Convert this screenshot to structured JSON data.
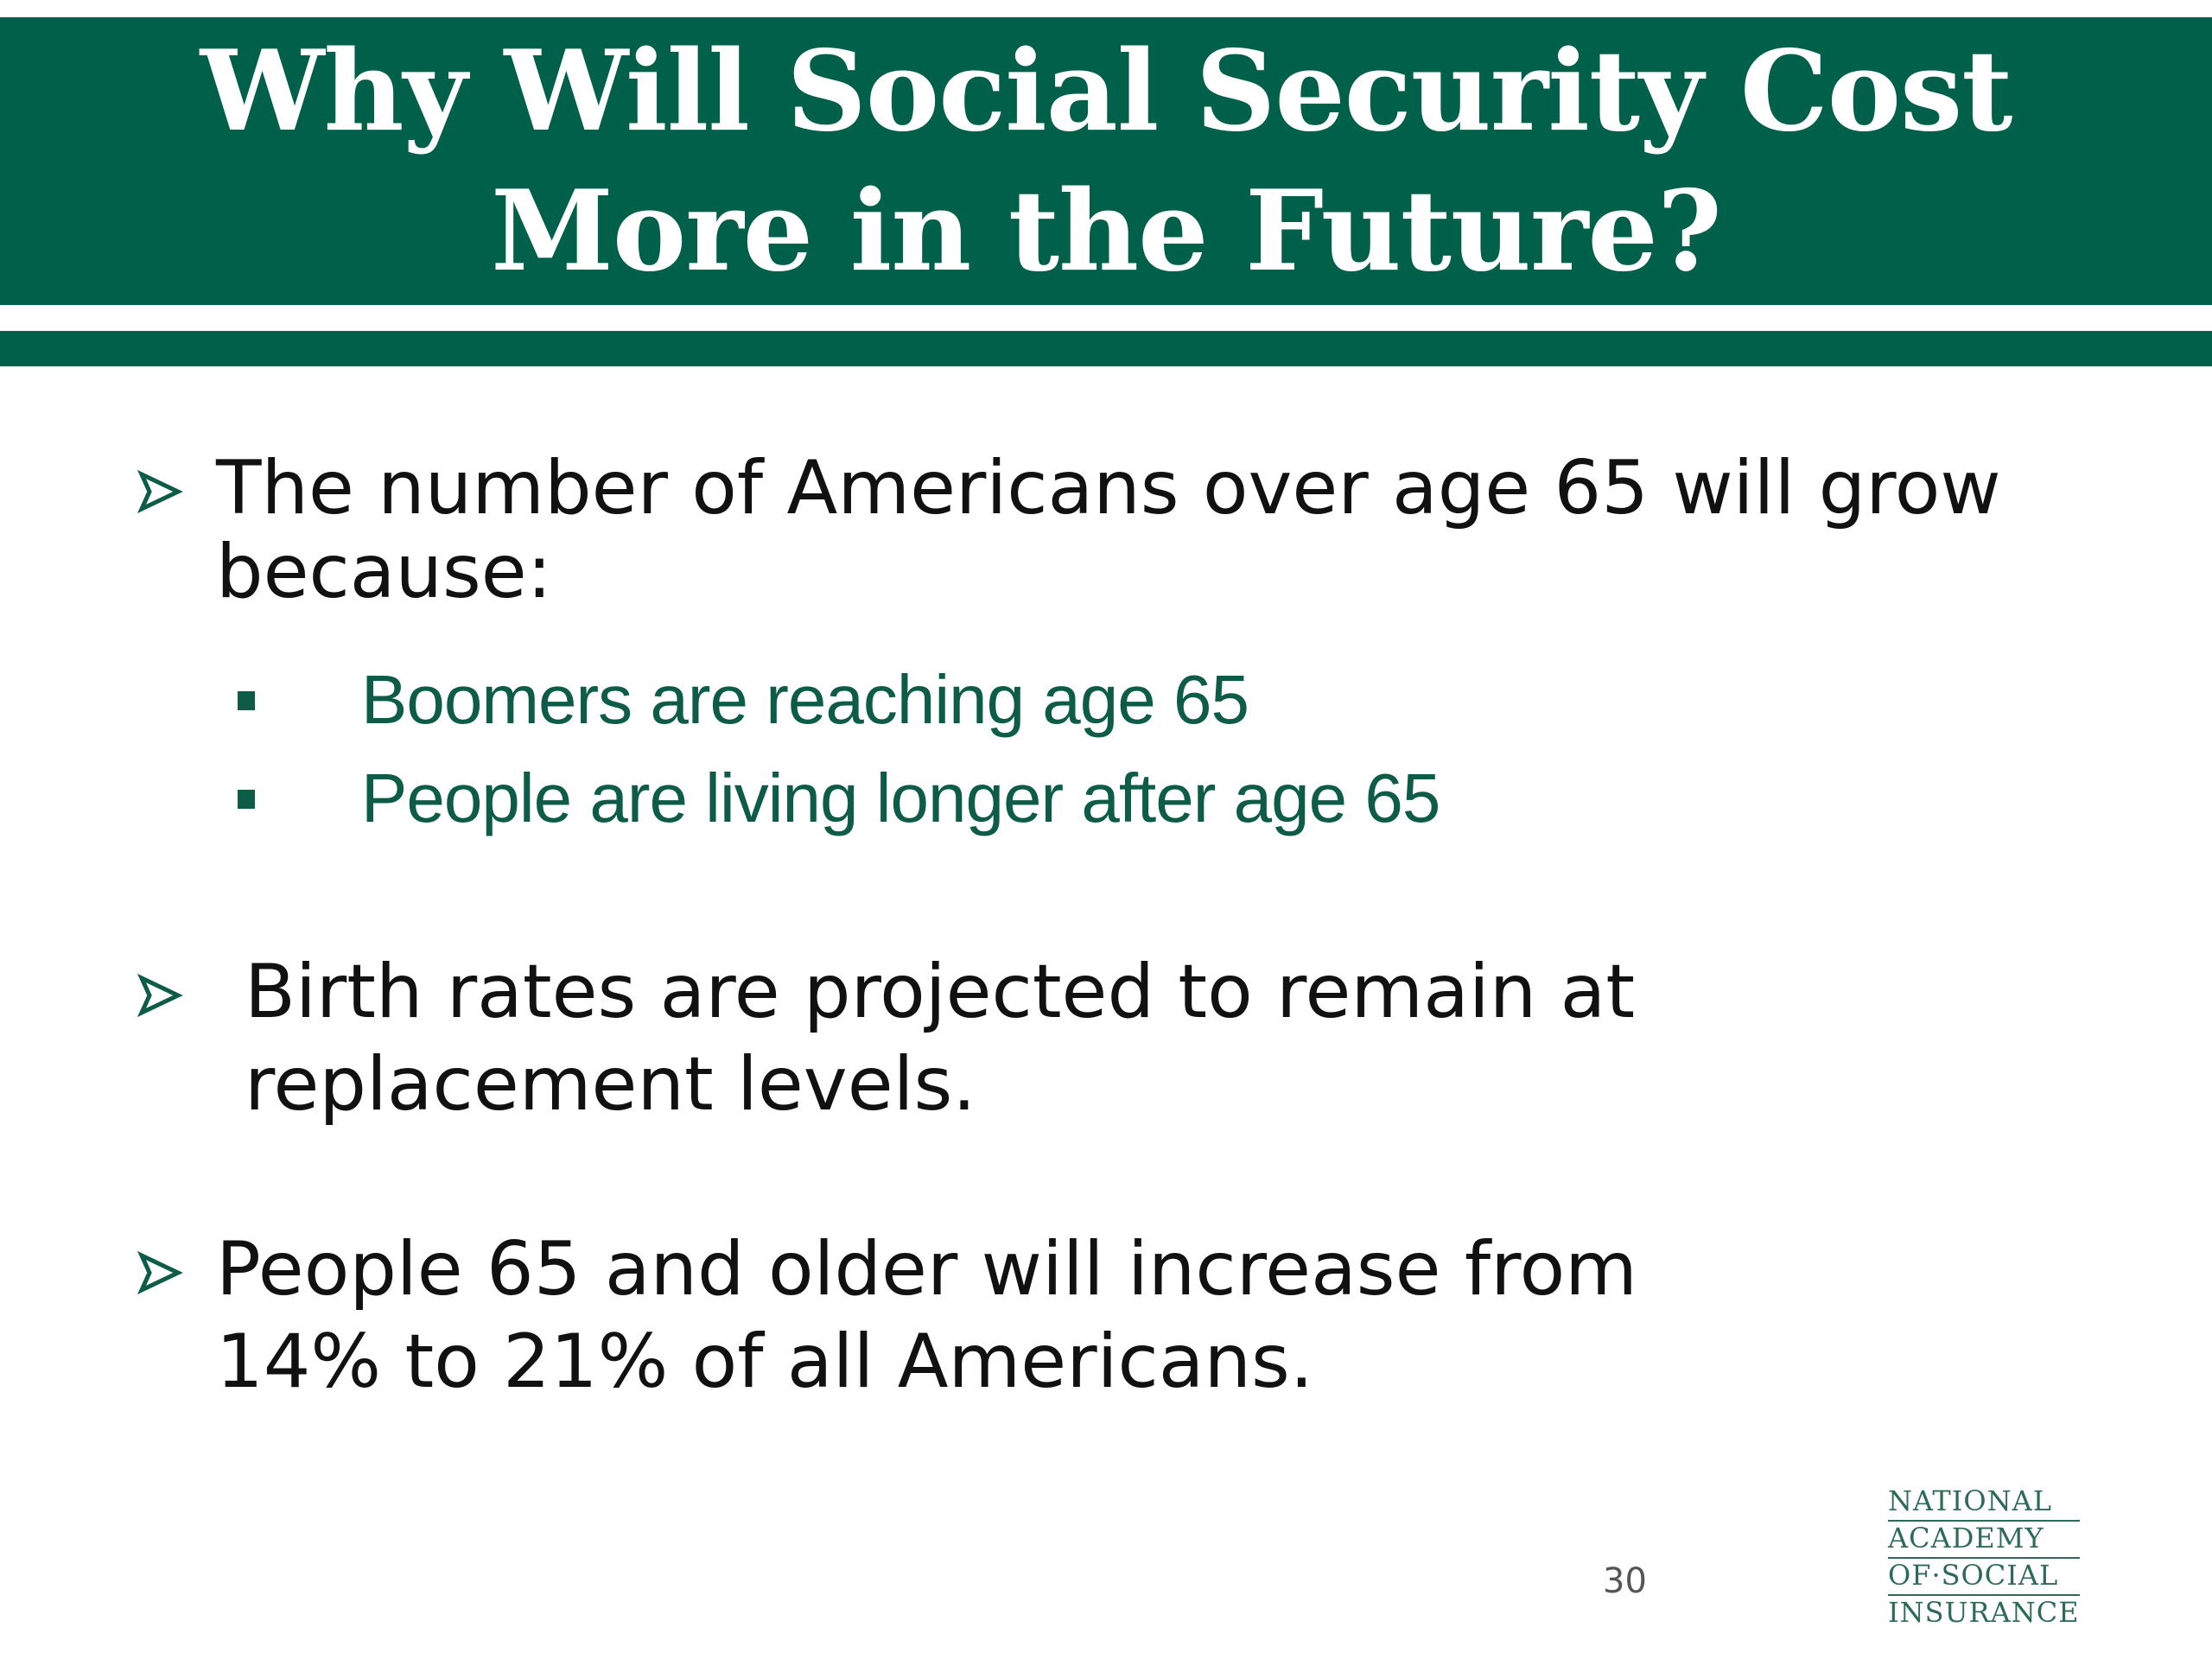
{
  "colors": {
    "brand": "#00604a",
    "sub": "#0d5c48"
  },
  "slide": {
    "title_line1": "Why Will Social Security Cost",
    "title_line2": "More in the Future?",
    "bullets": [
      {
        "icon": "arrowhead-bullet-icon",
        "lines": [
          "The number of Americans over age 65 will grow",
          "because:"
        ],
        "subitems": [
          {
            "icon": "square-bullet-icon",
            "text": "Boomers are reaching age 65"
          },
          {
            "icon": "square-bullet-icon",
            "text": "People are living longer after age 65"
          }
        ]
      },
      {
        "icon": "arrowhead-bullet-icon",
        "lines": [
          "Birth rates are projected to remain at",
          "replacement levels."
        ]
      },
      {
        "icon": "arrowhead-bullet-icon",
        "lines": [
          "People 65 and older will increase from",
          "14% to 21% of all Americans."
        ]
      }
    ],
    "page_number": "30",
    "logo": {
      "lines": [
        "NATIONAL",
        "ACADEMY",
        "OF·SOCIAL",
        "INSURANCE"
      ]
    }
  }
}
